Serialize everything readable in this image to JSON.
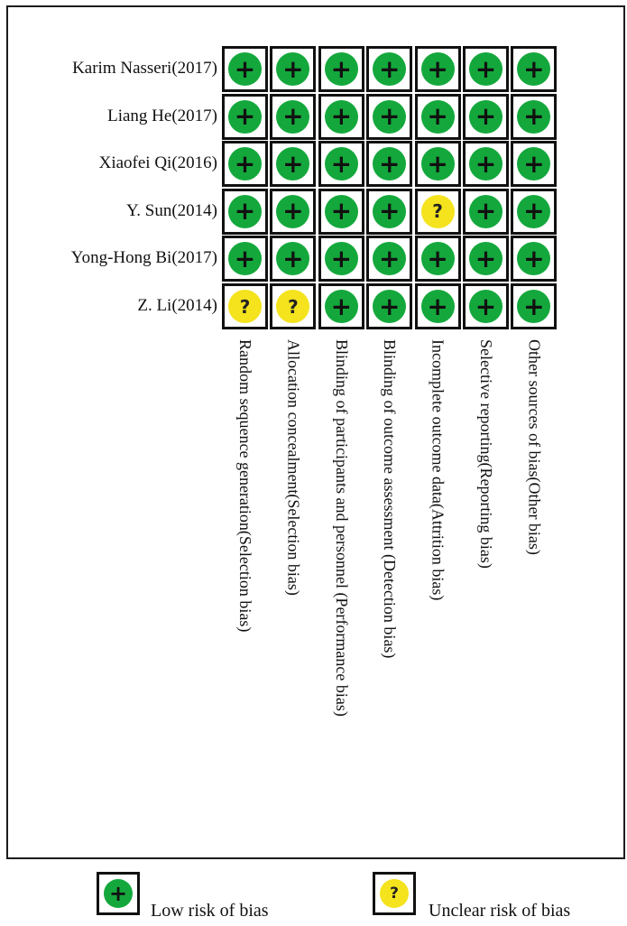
{
  "chart_data": {
    "type": "table",
    "studies": [
      "Karim Nasseri(2017)",
      "Liang He(2017)",
      "Xiaofei Qi(2016)",
      "Y. Sun(2014)",
      "Yong-Hong Bi(2017)",
      "Z. Li(2014)"
    ],
    "domains": [
      "Random sequence generation(Selection bias)",
      "Allocation concealment(Selection bias)",
      "Blinding of participants and personnel (Performance bias)",
      "Blinding of outcome assessment (Detection bias)",
      "Incomplete outcome data(Attrition bias)",
      "Selective reporting(Reporting bias)",
      "Other sources of bias(Other bias)"
    ],
    "judgements": [
      [
        "low",
        "low",
        "low",
        "low",
        "low",
        "low",
        "low"
      ],
      [
        "low",
        "low",
        "low",
        "low",
        "low",
        "low",
        "low"
      ],
      [
        "low",
        "low",
        "low",
        "low",
        "low",
        "low",
        "low"
      ],
      [
        "low",
        "low",
        "low",
        "low",
        "unclear",
        "low",
        "low"
      ],
      [
        "low",
        "low",
        "low",
        "low",
        "low",
        "low",
        "low"
      ],
      [
        "unclear",
        "unclear",
        "low",
        "low",
        "low",
        "low",
        "low"
      ]
    ],
    "symbols": {
      "low": "+",
      "unclear": "?"
    },
    "colors": {
      "low": "#14a83c",
      "unclear": "#f4e31d"
    },
    "legend": [
      {
        "key": "low",
        "label": "Low risk of bias"
      },
      {
        "key": "unclear",
        "label": "Unclear risk of bias"
      }
    ]
  }
}
